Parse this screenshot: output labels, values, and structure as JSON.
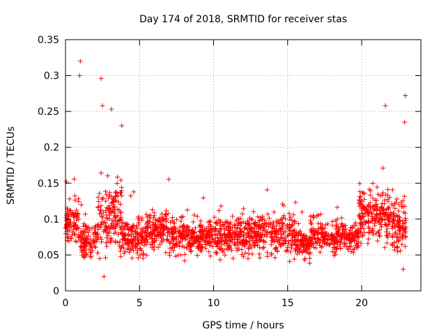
{
  "chart_data": {
    "type": "scatter",
    "title": "Day 174 of 2018, SRMTID for receiver stas",
    "xlabel": "GPS time / hours",
    "ylabel": "SRMTID / TECUs",
    "xlim": [
      0,
      24
    ],
    "ylim": [
      0,
      0.35
    ],
    "xticks": [
      0,
      5,
      10,
      15,
      20
    ],
    "xtick_labels": [
      "0",
      "5",
      "10",
      "15",
      "20"
    ],
    "yticks": [
      0,
      0.05,
      0.1,
      0.15,
      0.2,
      0.25,
      0.3,
      0.35
    ],
    "ytick_labels": [
      "0",
      "0.05",
      "0.1",
      "0.15",
      "0.2",
      "0.25",
      "0.3",
      "0.35"
    ],
    "grid": true,
    "marker": "+",
    "series_color": "#ff0000",
    "data_range_x": [
      0,
      23
    ],
    "approx_point_count": 2100,
    "typical_y_range": [
      0.03,
      0.15
    ],
    "notable_points": [
      {
        "x": 1.0,
        "y": 0.32
      },
      {
        "x": 0.95,
        "y": 0.3
      },
      {
        "x": 2.4,
        "y": 0.296
      },
      {
        "x": 2.5,
        "y": 0.258
      },
      {
        "x": 3.1,
        "y": 0.253
      },
      {
        "x": 3.8,
        "y": 0.23
      },
      {
        "x": 21.6,
        "y": 0.258
      },
      {
        "x": 22.95,
        "y": 0.272
      },
      {
        "x": 22.9,
        "y": 0.235
      },
      {
        "x": 2.6,
        "y": 0.02
      },
      {
        "x": 22.8,
        "y": 0.03
      }
    ]
  }
}
